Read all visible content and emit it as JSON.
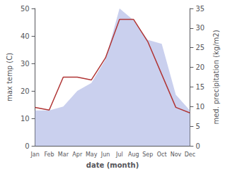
{
  "chart_data": {
    "type": "line",
    "categories": [
      "Jan",
      "Feb",
      "Mar",
      "Apr",
      "May",
      "Jun",
      "Jul",
      "Aug",
      "Sep",
      "Oct",
      "Nov",
      "Dec"
    ],
    "series": [
      {
        "type": "area",
        "color": "#b8c0e8",
        "axis": "y2",
        "values": [
          9,
          9,
          10,
          14,
          16,
          22,
          35,
          32,
          27,
          26,
          13,
          9
        ]
      },
      {
        "type": "line",
        "color": "#b03535",
        "values": [
          14,
          13,
          25,
          25,
          24,
          32,
          46,
          46,
          38,
          26,
          14,
          12
        ]
      }
    ],
    "xlabel": "date (month)",
    "ylabel": "max temp (C)",
    "y2label": "med. precipitation (kg/m2)",
    "ylim": [
      0,
      50
    ],
    "yticks": [
      0,
      10,
      20,
      30,
      40,
      50
    ],
    "y2lim": [
      0,
      35
    ],
    "y2ticks": [
      0,
      5,
      10,
      15,
      20,
      25,
      30,
      35
    ],
    "grid": false
  }
}
